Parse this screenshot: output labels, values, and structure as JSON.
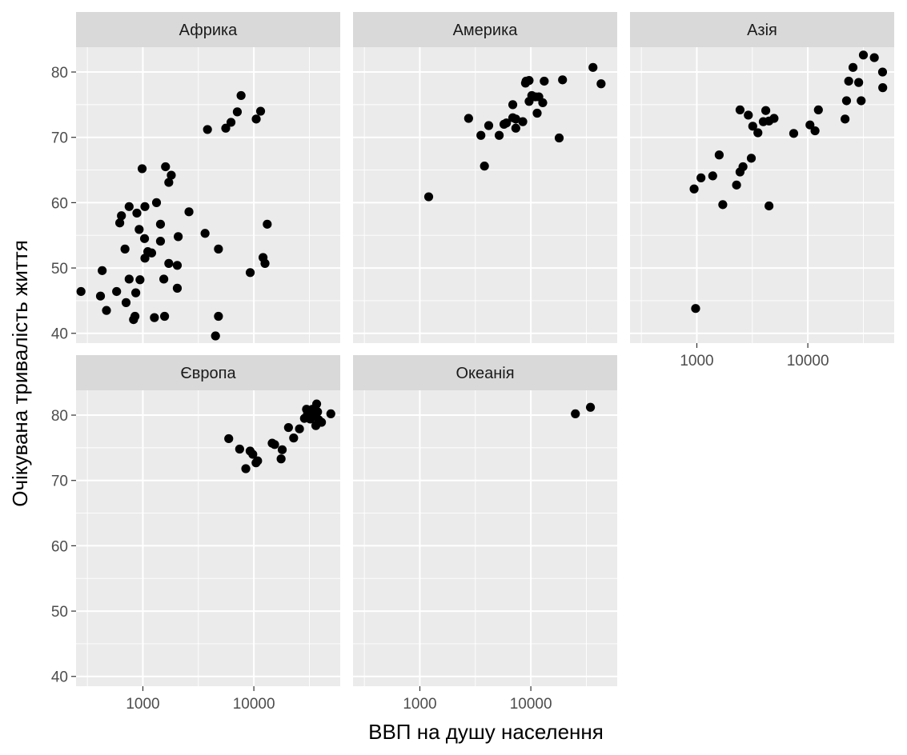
{
  "chart_data": {
    "type": "scatter",
    "xlabel": "ВВП на душу населення",
    "ylabel": "Очікувана тривалість життя",
    "x_scale": "log10",
    "xlim": [
      250,
      60000
    ],
    "ylim": [
      38.5,
      83.8
    ],
    "x_ticks": [
      1000,
      10000
    ],
    "x_tick_labels": [
      "1000",
      "10000"
    ],
    "y_ticks": [
      40,
      50,
      60,
      70,
      80
    ],
    "y_tick_labels": [
      "40",
      "50",
      "60",
      "70",
      "80"
    ],
    "grid": true,
    "point_color": "#000000",
    "panel_background": "#ebebeb",
    "strip_background": "#d9d9d9",
    "panels": [
      {
        "name": "Африка",
        "points": [
          [
            277,
            46.4
          ],
          [
            415,
            45.7
          ],
          [
            430,
            49.6
          ],
          [
            470,
            43.5
          ],
          [
            580,
            46.4
          ],
          [
            619,
            56.9
          ],
          [
            641,
            58.0
          ],
          [
            690,
            52.9
          ],
          [
            706,
            44.7
          ],
          [
            752,
            59.4
          ],
          [
            752,
            48.3
          ],
          [
            824,
            42.1
          ],
          [
            849,
            42.6
          ],
          [
            863,
            46.2
          ],
          [
            883,
            58.4
          ],
          [
            926,
            55.9
          ],
          [
            942,
            48.2
          ],
          [
            985,
            65.2
          ],
          [
            1035,
            54.5
          ],
          [
            1043,
            59.4
          ],
          [
            1043,
            51.5
          ],
          [
            1107,
            52.5
          ],
          [
            1200,
            52.3
          ],
          [
            1270,
            42.4
          ],
          [
            1327,
            60.0
          ],
          [
            1441,
            54.1
          ],
          [
            1441,
            56.7
          ],
          [
            1544,
            48.3
          ],
          [
            1569,
            42.6
          ],
          [
            1600,
            65.5
          ],
          [
            1712,
            50.7
          ],
          [
            1712,
            63.1
          ],
          [
            1803,
            64.2
          ],
          [
            2042,
            50.4
          ],
          [
            2042,
            46.9
          ],
          [
            2082,
            54.8
          ],
          [
            2602,
            58.6
          ],
          [
            3633,
            55.3
          ],
          [
            3820,
            71.2
          ],
          [
            4513,
            39.6
          ],
          [
            4797,
            42.6
          ],
          [
            4797,
            52.9
          ],
          [
            5581,
            71.4
          ],
          [
            6224,
            72.3
          ],
          [
            7093,
            73.9
          ],
          [
            7670,
            76.4
          ],
          [
            9270,
            49.3
          ],
          [
            10500,
            72.8
          ],
          [
            11500,
            74.0
          ],
          [
            12100,
            51.6
          ],
          [
            12600,
            50.7
          ],
          [
            13200,
            56.7
          ]
        ]
      },
      {
        "name": "Америка",
        "points": [
          [
            1201,
            60.9
          ],
          [
            2749,
            72.9
          ],
          [
            3548,
            70.3
          ],
          [
            3820,
            65.6
          ],
          [
            4173,
            71.8
          ],
          [
            5186,
            70.3
          ],
          [
            5728,
            72.0
          ],
          [
            6025,
            72.2
          ],
          [
            6873,
            73.0
          ],
          [
            6873,
            75.0
          ],
          [
            7320,
            71.4
          ],
          [
            7320,
            72.8
          ],
          [
            8458,
            72.4
          ],
          [
            8948,
            78.3
          ],
          [
            9065,
            78.6
          ],
          [
            9645,
            78.7
          ],
          [
            9645,
            75.5
          ],
          [
            10200,
            76.4
          ],
          [
            11000,
            76.2
          ],
          [
            11400,
            73.7
          ],
          [
            11800,
            76.2
          ],
          [
            12800,
            75.3
          ],
          [
            13200,
            78.6
          ],
          [
            18000,
            69.9
          ],
          [
            19300,
            78.8
          ],
          [
            36300,
            80.7
          ],
          [
            42950,
            78.2
          ]
        ]
      },
      {
        "name": "Азія",
        "points": [
          [
            945,
            62.1
          ],
          [
            975,
            43.8
          ],
          [
            1090,
            63.8
          ],
          [
            1390,
            64.1
          ],
          [
            1590,
            67.3
          ],
          [
            1713,
            59.7
          ],
          [
            2280,
            62.7
          ],
          [
            2450,
            74.2
          ],
          [
            2450,
            64.7
          ],
          [
            2605,
            65.5
          ],
          [
            2910,
            73.4
          ],
          [
            3095,
            66.8
          ],
          [
            3190,
            71.7
          ],
          [
            3550,
            70.7
          ],
          [
            3970,
            72.4
          ],
          [
            4180,
            74.1
          ],
          [
            4470,
            59.5
          ],
          [
            4470,
            72.5
          ],
          [
            4960,
            72.9
          ],
          [
            7460,
            70.6
          ],
          [
            10460,
            71.9
          ],
          [
            11610,
            71.0
          ],
          [
            12450,
            74.2
          ],
          [
            21650,
            72.8
          ],
          [
            22320,
            75.6
          ],
          [
            23350,
            78.6
          ],
          [
            25530,
            80.7
          ],
          [
            28720,
            78.4
          ],
          [
            30250,
            75.6
          ],
          [
            31660,
            82.6
          ],
          [
            39720,
            82.2
          ],
          [
            47140,
            80.0
          ],
          [
            47310,
            77.6
          ]
        ]
      },
      {
        "name": "Європа",
        "points": [
          [
            5937,
            76.4
          ],
          [
            7446,
            74.8
          ],
          [
            8460,
            71.8
          ],
          [
            9250,
            74.5
          ],
          [
            9780,
            74.0
          ],
          [
            10460,
            72.7
          ],
          [
            10810,
            73.0
          ],
          [
            14620,
            75.7
          ],
          [
            15390,
            75.5
          ],
          [
            17600,
            73.3
          ],
          [
            18010,
            74.7
          ],
          [
            20510,
            78.1
          ],
          [
            22830,
            76.5
          ],
          [
            25770,
            77.9
          ],
          [
            28570,
            79.5
          ],
          [
            29800,
            80.9
          ],
          [
            30470,
            80.2
          ],
          [
            32170,
            79.4
          ],
          [
            33210,
            80.5
          ],
          [
            33690,
            80.9
          ],
          [
            34440,
            80.4
          ],
          [
            35280,
            79.8
          ],
          [
            36130,
            80.5
          ],
          [
            36180,
            78.4
          ],
          [
            36800,
            81.7
          ],
          [
            37510,
            80.5
          ],
          [
            38260,
            79.3
          ],
          [
            40680,
            78.9
          ],
          [
            49360,
            80.2
          ]
        ]
      },
      {
        "name": "Океанія",
        "points": [
          [
            25185,
            80.2
          ],
          [
            34435,
            81.2
          ]
        ]
      }
    ]
  }
}
